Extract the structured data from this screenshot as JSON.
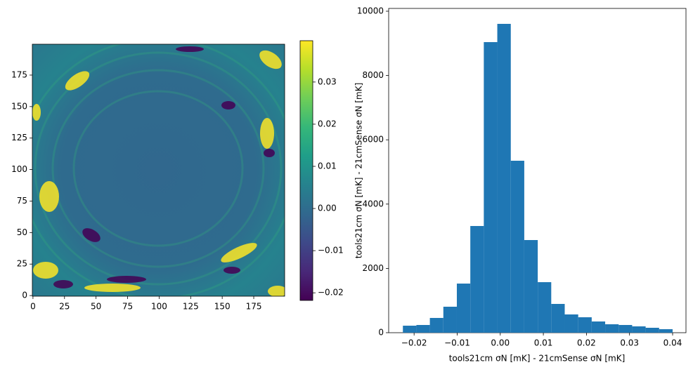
{
  "chart_data": [
    {
      "type": "heatmap",
      "colormap": "viridis",
      "origin": "lower",
      "xlim": [
        -0.5,
        199.5
      ],
      "ylim": [
        -0.5,
        199.5
      ],
      "xticks": [
        0,
        25,
        50,
        75,
        100,
        125,
        150,
        175
      ],
      "yticks": [
        0,
        25,
        50,
        75,
        100,
        125,
        150,
        175
      ],
      "clim": [
        -0.0218,
        0.0398
      ],
      "cticks": [
        {
          "value": -0.02,
          "label": "−0.02"
        },
        {
          "value": -0.01,
          "label": "−0.01"
        },
        {
          "value": 0,
          "label": "0.00"
        },
        0.01,
        0.02,
        0.03
      ]
    },
    {
      "type": "histogram",
      "color": "#1f77b4",
      "xlabel": "tools21cm σN [mK] - 21cmSense σN [mK]",
      "ylabel": "tools21cm σN [mK] - 21cmSense σN [mK]",
      "bins": [
        -0.0226,
        -0.01947,
        -0.01634,
        -0.01321,
        -0.01008,
        -0.00695,
        -0.00382,
        -0.00069,
        0.00244,
        0.00557,
        0.0087,
        0.01183,
        0.01496,
        0.01809,
        0.02122,
        0.02435,
        0.02748,
        0.03061,
        0.03374,
        0.03687,
        0.04
      ],
      "values": [
        218,
        240,
        459,
        808,
        1528,
        3319,
        9039,
        9607,
        5349,
        2882,
        1572,
        895,
        568,
        480,
        349,
        262,
        240,
        197,
        153,
        109
      ],
      "xlim": [
        -0.0259,
        0.0431
      ],
      "ylim": [
        0,
        10087
      ],
      "xticks": [
        {
          "value": -0.02,
          "label": "−0.02"
        },
        {
          "value": -0.01,
          "label": "−0.01"
        },
        {
          "value": 0,
          "label": "0.00"
        },
        0.01,
        0.02,
        0.03,
        0.04
      ],
      "yticks": [
        0,
        2000,
        4000,
        6000,
        8000,
        10000
      ]
    }
  ]
}
